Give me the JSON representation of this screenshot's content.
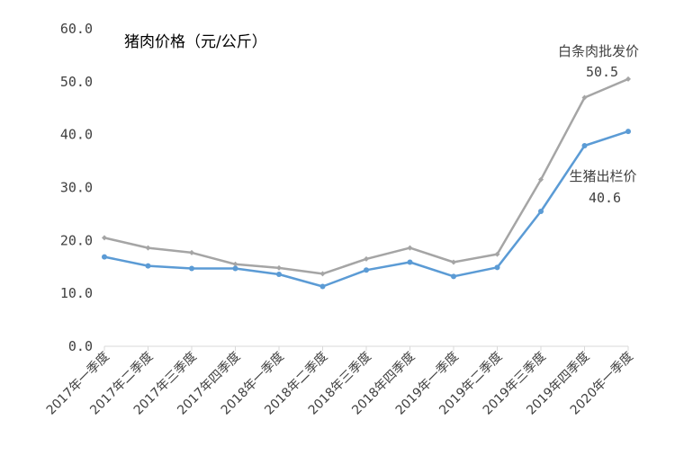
{
  "chart_data": {
    "type": "line",
    "title": "猪肉价格（元/公斤）",
    "categories": [
      "2017年一季度",
      "2017年二季度",
      "2017年三季度",
      "2017年四季度",
      "2018年一季度",
      "2018年二季度",
      "2018年三季度",
      "2018年四季度",
      "2019年一季度",
      "2019年二季度",
      "2019年三季度",
      "2019年四季度",
      "2020年一季度"
    ],
    "series": [
      {
        "name": "白条肉批发价",
        "color": "#a5a5a5",
        "values": [
          20.5,
          18.6,
          17.7,
          15.5,
          14.8,
          13.7,
          16.5,
          18.6,
          15.9,
          17.4,
          31.5,
          47.0,
          50.5
        ],
        "end_label": "50.5"
      },
      {
        "name": "生猪出栏价",
        "color": "#5b9bd5",
        "values": [
          16.9,
          15.2,
          14.7,
          14.7,
          13.6,
          11.3,
          14.4,
          15.9,
          13.2,
          14.9,
          25.5,
          37.9,
          40.6
        ],
        "end_label": "40.6"
      }
    ],
    "y_ticks": [
      "0.0",
      "10.0",
      "20.0",
      "30.0",
      "40.0",
      "50.0",
      "60.0"
    ],
    "ylim": [
      0,
      60
    ],
    "grid": false,
    "legend": "none"
  }
}
